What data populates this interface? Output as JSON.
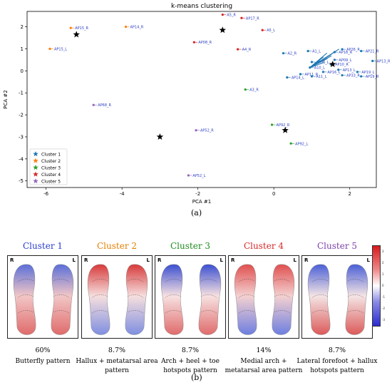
{
  "chart_data": {
    "type": "scatter",
    "title": "k-means clustering",
    "xlabel": "PCA #1",
    "ylabel": "PCA #2",
    "xlim": [
      -6.5,
      2.7
    ],
    "ylim": [
      -5.3,
      2.7
    ],
    "xticks": [
      "-6",
      "-4",
      "-2",
      "0",
      "2"
    ],
    "xtick_values": [
      -6,
      -4,
      -2,
      0,
      2
    ],
    "yticks": [
      "2",
      "1",
      "0",
      "-1",
      "-2",
      "-3",
      "-4",
      "-5"
    ],
    "ytick_values": [
      2,
      1,
      0,
      -1,
      -2,
      -3,
      -4,
      -5
    ],
    "legend_position": "lower-left",
    "series": [
      {
        "name": "Cluster 1",
        "color": "#1f77b4",
        "points": [
          {
            "x": 0.25,
            "y": 0.8,
            "label": "A2_R"
          },
          {
            "x": 1.8,
            "y": 0.98,
            "label": "AP26_R"
          },
          {
            "x": 2.3,
            "y": 0.9,
            "label": "AP21_R"
          },
          {
            "x": 1.6,
            "y": 0.85,
            "label": "AP18_R"
          },
          {
            "x": 0.9,
            "y": 0.9,
            "label": "A1_L"
          },
          {
            "x": 2.6,
            "y": 0.45,
            "label": "AP13_R"
          },
          {
            "x": 1.0,
            "y": 0.4,
            "label": "AP06_L"
          },
          {
            "x": 1.6,
            "y": 0.5,
            "label": "AP09_L"
          },
          {
            "x": 1.5,
            "y": 0.3,
            "label": "AP10_R"
          },
          {
            "x": 0.95,
            "y": 0.15,
            "label": "A10_L"
          },
          {
            "x": 1.7,
            "y": 0.05,
            "label": "AP13_L"
          },
          {
            "x": 1.3,
            "y": -0.05,
            "label": "AP16_L"
          },
          {
            "x": 0.7,
            "y": -0.15,
            "label": "AP11_R"
          },
          {
            "x": 1.0,
            "y": -0.25,
            "label": "A11_L"
          },
          {
            "x": 2.2,
            "y": -0.05,
            "label": "AP19_L"
          },
          {
            "x": 1.8,
            "y": -0.2,
            "label": "AP33_R"
          },
          {
            "x": 2.3,
            "y": -0.25,
            "label": "AP19_R"
          },
          {
            "x": 0.35,
            "y": -0.3,
            "label": "AP14_L"
          }
        ]
      },
      {
        "name": "Cluster 2",
        "color": "#ff7f0e",
        "points": [
          {
            "x": -5.35,
            "y": 1.95,
            "label": "AP15_R"
          },
          {
            "x": -3.9,
            "y": 2.0,
            "label": "AP14_R"
          },
          {
            "x": -5.9,
            "y": 1.0,
            "label": "AP15_L"
          }
        ]
      },
      {
        "name": "Cluster 3",
        "color": "#2ca02c",
        "points": [
          {
            "x": -0.75,
            "y": -0.85,
            "label": "A3_R"
          },
          {
            "x": -0.05,
            "y": -2.45,
            "label": "AP92_R"
          },
          {
            "x": 0.45,
            "y": -3.3,
            "label": "AP92_L"
          }
        ]
      },
      {
        "name": "Cluster 4",
        "color": "#d62728",
        "points": [
          {
            "x": -1.35,
            "y": 2.55,
            "label": "A5_R"
          },
          {
            "x": -0.85,
            "y": 2.4,
            "label": "AP17_R"
          },
          {
            "x": -0.3,
            "y": 1.85,
            "label": "A5_L"
          },
          {
            "x": -2.1,
            "y": 1.3,
            "label": "AP08_R"
          },
          {
            "x": -0.95,
            "y": 0.98,
            "label": "A4_R"
          }
        ]
      },
      {
        "name": "Cluster 5",
        "color": "#9467bd",
        "points": [
          {
            "x": -4.75,
            "y": -1.55,
            "label": "AP68_R"
          },
          {
            "x": -2.05,
            "y": -2.7,
            "label": "AP52_R"
          },
          {
            "x": -2.25,
            "y": -4.75,
            "label": "AP52_L"
          }
        ]
      }
    ],
    "centroids": [
      {
        "x": -5.2,
        "y": 1.65
      },
      {
        "x": -1.35,
        "y": 1.85
      },
      {
        "x": 1.55,
        "y": 0.3
      },
      {
        "x": 0.3,
        "y": -2.7
      },
      {
        "x": -3.0,
        "y": -3.0
      }
    ],
    "centroid_color": "#000000"
  },
  "subfigure_labels": {
    "a": "(a)",
    "b": "(b)"
  },
  "panels": [
    {
      "title": "Cluster 1",
      "color": "#2a3bd0",
      "percent": "60%",
      "description": "Butterfly pattern"
    },
    {
      "title": "Cluster 2",
      "color": "#e67e00",
      "percent": "8.7%",
      "description": "Hallux + metatarsal area pattern"
    },
    {
      "title": "Cluster 3",
      "color": "#1e8a1e",
      "percent": "8.7%",
      "description": "Arch + heel + toe hotspots pattern"
    },
    {
      "title": "Cluster 4",
      "color": "#d62728",
      "percent": "14%",
      "description": "Medial arch + metatarsal area pattern"
    },
    {
      "title": "Cluster 5",
      "color": "#7b3fa8",
      "percent": "8.7%",
      "description": "Lateral forefoot + hallux hotspots pattern"
    }
  ],
  "insole_corner_labels": {
    "left": "R",
    "right": "L"
  },
  "colorbar_ticks": [
    "3",
    "2",
    "1",
    "0",
    "-1",
    "-2",
    "-3"
  ]
}
